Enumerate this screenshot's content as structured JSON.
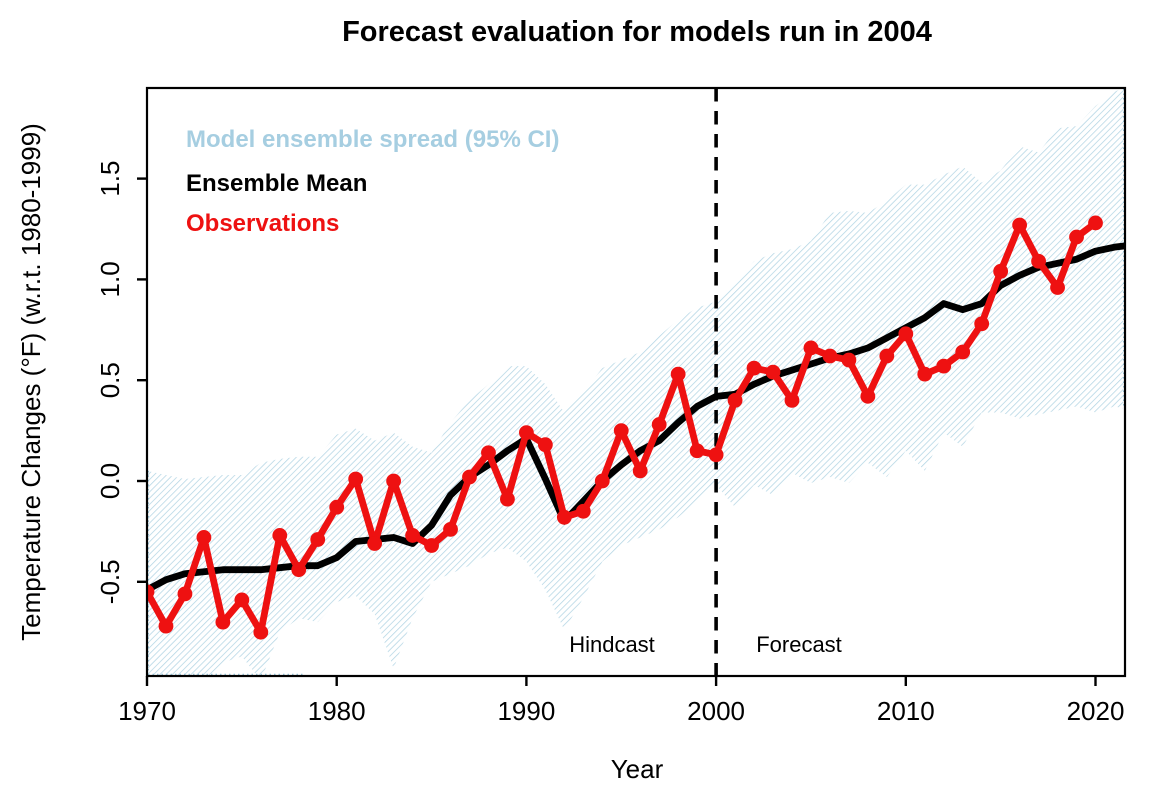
{
  "title": "Forecast evaluation for models run in 2004",
  "axes": {
    "x_label": "Year",
    "y_label": "Temperature Changes (°F) (w.r.t. 1980-1999)",
    "x_ticks": [
      1970,
      1980,
      1990,
      2000,
      2010,
      2020
    ],
    "y_ticks": [
      "-0.5",
      "0.0",
      "0.5",
      "1.0",
      "1.5"
    ]
  },
  "legend": {
    "items": [
      {
        "label": "Model ensemble spread (95% CI)",
        "color": "#a6cee1"
      },
      {
        "label": "Ensemble Mean",
        "color": "#000000"
      },
      {
        "label": "Observations",
        "color": "#ee1111"
      }
    ]
  },
  "annotations": {
    "hindcast": {
      "label": "Hindcast"
    },
    "forecast": {
      "label": "Forecast"
    },
    "split_year": 2000
  },
  "colors": {
    "band_stripe": "#b2d5e4",
    "band_edge_dotted": "#97c4d8",
    "mean_line": "#000000",
    "observations": "#ee1111",
    "split_line": "#000000",
    "axis": "#000000"
  },
  "chart_data": {
    "type": "line",
    "title": "Forecast evaluation for models run in 2004",
    "xlabel": "Year",
    "ylabel": "Temperature Changes (°F) (w.r.t. 1980-1999)",
    "xlim": [
      1970,
      2021.45
    ],
    "ylim": [
      -0.97,
      1.95
    ],
    "grid": false,
    "legend_position": "top-left-inside",
    "x": [
      1970,
      1971,
      1972,
      1973,
      1974,
      1975,
      1976,
      1977,
      1978,
      1979,
      1980,
      1981,
      1982,
      1983,
      1984,
      1985,
      1986,
      1987,
      1988,
      1989,
      1990,
      1991,
      1992,
      1993,
      1994,
      1995,
      1996,
      1997,
      1998,
      1999,
      2000,
      2001,
      2002,
      2003,
      2004,
      2005,
      2006,
      2007,
      2008,
      2009,
      2010,
      2011,
      2012,
      2013,
      2014,
      2015,
      2016,
      2017,
      2018,
      2019,
      2020,
      2021
    ],
    "series": [
      {
        "name": "Model ensemble spread (95% CI)",
        "type": "band",
        "upper": [
          0.05,
          0.03,
          0.01,
          0.02,
          0.03,
          0.03,
          0.09,
          0.11,
          0.12,
          0.12,
          0.23,
          0.26,
          0.2,
          0.24,
          0.17,
          0.14,
          0.29,
          0.4,
          0.48,
          0.57,
          0.57,
          0.48,
          0.34,
          0.44,
          0.56,
          0.6,
          0.64,
          0.72,
          0.8,
          0.86,
          0.89,
          0.98,
          1.09,
          1.13,
          1.15,
          1.19,
          1.33,
          1.34,
          1.33,
          1.39,
          1.47,
          1.47,
          1.52,
          1.56,
          1.48,
          1.54,
          1.66,
          1.63,
          1.75,
          1.76,
          1.86,
          1.93
        ],
        "lower": [
          -0.95,
          -0.99,
          -0.97,
          -0.99,
          -0.9,
          -0.87,
          -0.99,
          -0.75,
          -0.68,
          -0.7,
          -0.6,
          -0.57,
          -0.66,
          -0.93,
          -0.68,
          -0.5,
          -0.46,
          -0.42,
          -0.36,
          -0.33,
          -0.4,
          -0.54,
          -0.74,
          -0.58,
          -0.4,
          -0.32,
          -0.28,
          -0.24,
          -0.18,
          -0.1,
          -0.02,
          -0.13,
          -0.02,
          -0.07,
          0.04,
          -0.01,
          0.02,
          -0.01,
          0.09,
          0.02,
          0.15,
          0.05,
          0.24,
          0.17,
          0.34,
          0.34,
          0.31,
          0.33,
          0.35,
          0.37,
          0.34,
          0.37
        ],
        "edge_year": 2021.45,
        "edge_upper": 1.95,
        "edge_lower": 0.36
      },
      {
        "name": "Ensemble Mean",
        "type": "line",
        "values": [
          -0.54,
          -0.49,
          -0.46,
          -0.45,
          -0.44,
          -0.44,
          -0.44,
          -0.43,
          -0.42,
          -0.42,
          -0.38,
          -0.3,
          -0.29,
          -0.28,
          -0.31,
          -0.22,
          -0.07,
          0.02,
          0.08,
          0.15,
          0.21,
          0.01,
          -0.2,
          -0.1,
          0.0,
          0.08,
          0.15,
          0.2,
          0.29,
          0.37,
          0.42,
          0.43,
          0.48,
          0.52,
          0.55,
          0.58,
          0.61,
          0.63,
          0.66,
          0.71,
          0.76,
          0.81,
          0.88,
          0.85,
          0.88,
          0.97,
          1.02,
          1.06,
          1.08,
          1.1,
          1.14,
          1.16
        ],
        "edge_year": 2021.45,
        "edge_value": 1.165
      },
      {
        "name": "Observations",
        "type": "line+markers",
        "values": [
          -0.55,
          -0.72,
          -0.56,
          -0.28,
          -0.7,
          -0.59,
          -0.75,
          -0.27,
          -0.44,
          -0.29,
          -0.13,
          0.01,
          -0.31,
          0.0,
          -0.27,
          -0.32,
          -0.24,
          0.02,
          0.14,
          -0.09,
          0.24,
          0.18,
          -0.18,
          -0.15,
          0.0,
          0.25,
          0.05,
          0.28,
          0.53,
          0.15,
          0.13,
          0.4,
          0.56,
          0.54,
          0.4,
          0.66,
          0.62,
          0.6,
          0.42,
          0.62,
          0.73,
          0.53,
          0.57,
          0.64,
          0.78,
          1.04,
          1.27,
          1.09,
          0.96,
          1.21,
          1.28,
          null
        ]
      }
    ],
    "annotations": [
      {
        "text": "Hindcast",
        "x": 1994.5,
        "y": -0.84
      },
      {
        "text": "Forecast",
        "x": 2004.5,
        "y": -0.84
      }
    ],
    "split_line_year": 2000
  }
}
